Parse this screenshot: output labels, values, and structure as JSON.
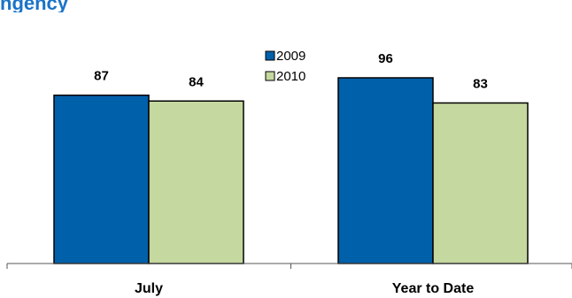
{
  "chart_data": {
    "type": "bar",
    "title_fragment": "ngency",
    "categories": [
      "July",
      "Year to Date"
    ],
    "series": [
      {
        "name": "2009",
        "values": [
          87,
          96
        ],
        "color": "#0060aa"
      },
      {
        "name": "2010",
        "values": [
          84,
          83
        ],
        "color": "#c5d89f"
      }
    ],
    "ylim": [
      0,
      100
    ],
    "grid": false,
    "legend": "top-center"
  }
}
